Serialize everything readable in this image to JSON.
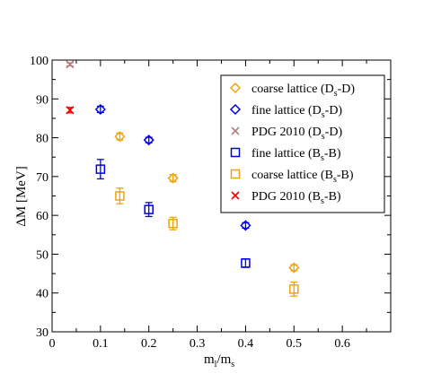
{
  "chart_data": {
    "type": "scatter",
    "xlabel": {
      "main": "m",
      "sub1": "l",
      "mid": "/m",
      "sub2": "s"
    },
    "ylabel": "ΔM [MeV]",
    "xlim": [
      0,
      0.7
    ],
    "ylim": [
      30,
      100
    ],
    "xticks": [
      "0",
      "0.1",
      "0.2",
      "0.3",
      "0.4",
      "0.5",
      "0.6"
    ],
    "yticks": [
      "30",
      "40",
      "50",
      "60",
      "70",
      "80",
      "90",
      "100"
    ],
    "grid": false,
    "legend_position": "top-right",
    "series": [
      {
        "name": "coarse lattice (D_s-D)",
        "legend": {
          "pre": "coarse lattice (D",
          "sub": "s",
          "post": "-D)"
        },
        "marker": "diamond",
        "color": "#f0a30a",
        "points": [
          {
            "x": 0.14,
            "y": 80.3,
            "err": 0.9
          },
          {
            "x": 0.25,
            "y": 69.6,
            "err": 0.9
          },
          {
            "x": 0.5,
            "y": 46.5,
            "err": 0.8
          }
        ]
      },
      {
        "name": "fine lattice (D_s-D)",
        "legend": {
          "pre": "fine lattice (D",
          "sub": "s",
          "post": "-D)"
        },
        "marker": "diamond",
        "color": "#0000ee",
        "points": [
          {
            "x": 0.1,
            "y": 87.3,
            "err": 0.8
          },
          {
            "x": 0.2,
            "y": 79.4,
            "err": 0.7
          },
          {
            "x": 0.4,
            "y": 57.4,
            "err": 0.7
          }
        ]
      },
      {
        "name": "PDG 2010 (D_s-D)",
        "legend": {
          "pre": "PDG 2010 (D",
          "sub": "s",
          "post": "-D)"
        },
        "marker": "x",
        "color": "#b08080",
        "points": [
          {
            "x": 0.037,
            "y": 98.9,
            "err": 0.4
          }
        ]
      },
      {
        "name": "fine lattice (B_s-B)",
        "legend": {
          "pre": "fine lattice (B",
          "sub": "s",
          "post": "-B)"
        },
        "marker": "square",
        "color": "#0000ee",
        "points": [
          {
            "x": 0.1,
            "y": 71.9,
            "err": 2.5
          },
          {
            "x": 0.2,
            "y": 61.5,
            "err": 1.8
          },
          {
            "x": 0.4,
            "y": 47.7,
            "err": 1.1
          }
        ]
      },
      {
        "name": "coarse lattice (B_s-B)",
        "legend": {
          "pre": "coarse lattice (B",
          "sub": "s",
          "post": "-B)"
        },
        "marker": "square",
        "color": "#f0a30a",
        "points": [
          {
            "x": 0.14,
            "y": 65.0,
            "err": 2.0
          },
          {
            "x": 0.25,
            "y": 57.9,
            "err": 1.6
          },
          {
            "x": 0.5,
            "y": 41.0,
            "err": 1.8
          }
        ]
      },
      {
        "name": "PDG 2010 (B_s-B)",
        "legend": {
          "pre": "PDG 2010 (B",
          "sub": "s",
          "post": "-B)"
        },
        "marker": "x",
        "color": "#ee0000",
        "points": [
          {
            "x": 0.037,
            "y": 87.1,
            "err": 0.7
          }
        ]
      }
    ]
  }
}
